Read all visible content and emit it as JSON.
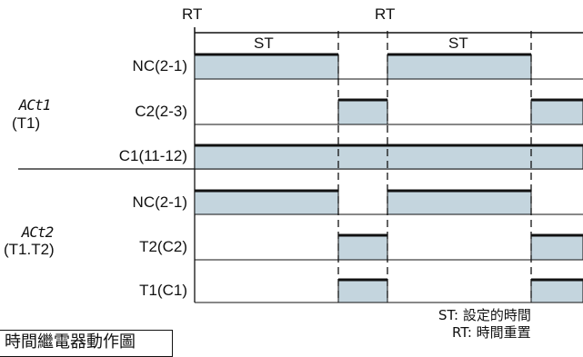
{
  "header": {
    "rt_left": "RT",
    "rt_right": "RT",
    "st_left": "ST",
    "st_right": "ST"
  },
  "groups": [
    {
      "name": "ACt1",
      "sub": "(T1)"
    },
    {
      "name": "ACt2",
      "sub": "(T1.T2)"
    }
  ],
  "rows": [
    {
      "label": "NC(2-1)"
    },
    {
      "label": "C2(2-3)"
    },
    {
      "label": "C1(11-12)"
    },
    {
      "label": "NC(2-1)"
    },
    {
      "label": "T2(C2)"
    },
    {
      "label": "T1(C1)"
    }
  ],
  "legend": {
    "st": "ST: 設定的時間",
    "rt": "RT: 時間重置"
  },
  "caption": "時間繼電器動作圖",
  "colors": {
    "fill": "#c4d5de",
    "line": "#111111"
  }
}
